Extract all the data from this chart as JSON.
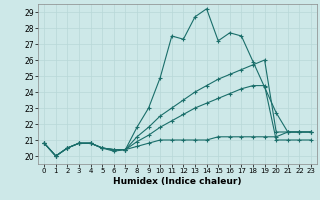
{
  "xlabel": "Humidex (Indice chaleur)",
  "xlim": [
    -0.5,
    23.5
  ],
  "ylim": [
    19.5,
    29.5
  ],
  "yticks": [
    20,
    21,
    22,
    23,
    24,
    25,
    26,
    27,
    28,
    29
  ],
  "xticks": [
    0,
    1,
    2,
    3,
    4,
    5,
    6,
    7,
    8,
    9,
    10,
    11,
    12,
    13,
    14,
    15,
    16,
    17,
    18,
    19,
    20,
    21,
    22,
    23
  ],
  "bg_color": "#cde8e8",
  "line_color": "#1a6e6a",
  "grid_color": "#b8d8d8",
  "line1_x": [
    0,
    1,
    2,
    3,
    4,
    5,
    6,
    7,
    8,
    9,
    10,
    11,
    12,
    13,
    14,
    15,
    16,
    17,
    18,
    19,
    20,
    21,
    22,
    23
  ],
  "line1_y": [
    20.8,
    20.0,
    20.5,
    20.8,
    20.8,
    20.5,
    20.3,
    20.4,
    21.8,
    23.0,
    24.9,
    27.5,
    27.3,
    28.7,
    29.2,
    27.2,
    27.7,
    27.5,
    25.9,
    24.3,
    22.7,
    21.5,
    21.5,
    21.5
  ],
  "line2_x": [
    0,
    1,
    2,
    3,
    4,
    5,
    6,
    7,
    8,
    9,
    10,
    11,
    12,
    13,
    14,
    15,
    16,
    17,
    18,
    19,
    20,
    21,
    22,
    23
  ],
  "line2_y": [
    20.8,
    20.0,
    20.5,
    20.8,
    20.8,
    20.5,
    20.4,
    20.4,
    21.2,
    21.8,
    22.5,
    23.0,
    23.5,
    24.0,
    24.4,
    24.8,
    25.1,
    25.4,
    25.7,
    26.0,
    21.5,
    21.5,
    21.5,
    21.5
  ],
  "line3_x": [
    0,
    1,
    2,
    3,
    4,
    5,
    6,
    7,
    8,
    9,
    10,
    11,
    12,
    13,
    14,
    15,
    16,
    17,
    18,
    19,
    20,
    21,
    22,
    23
  ],
  "line3_y": [
    20.8,
    20.0,
    20.5,
    20.8,
    20.8,
    20.5,
    20.4,
    20.4,
    20.9,
    21.3,
    21.8,
    22.2,
    22.6,
    23.0,
    23.3,
    23.6,
    23.9,
    24.2,
    24.4,
    24.4,
    21.0,
    21.0,
    21.0,
    21.0
  ],
  "line4_x": [
    0,
    1,
    2,
    3,
    4,
    5,
    6,
    7,
    8,
    9,
    10,
    11,
    12,
    13,
    14,
    15,
    16,
    17,
    18,
    19,
    20,
    21,
    22,
    23
  ],
  "line4_y": [
    20.8,
    20.0,
    20.5,
    20.8,
    20.8,
    20.5,
    20.4,
    20.4,
    20.6,
    20.8,
    21.0,
    21.0,
    21.0,
    21.0,
    21.0,
    21.2,
    21.2,
    21.2,
    21.2,
    21.2,
    21.2,
    21.5,
    21.5,
    21.5
  ]
}
